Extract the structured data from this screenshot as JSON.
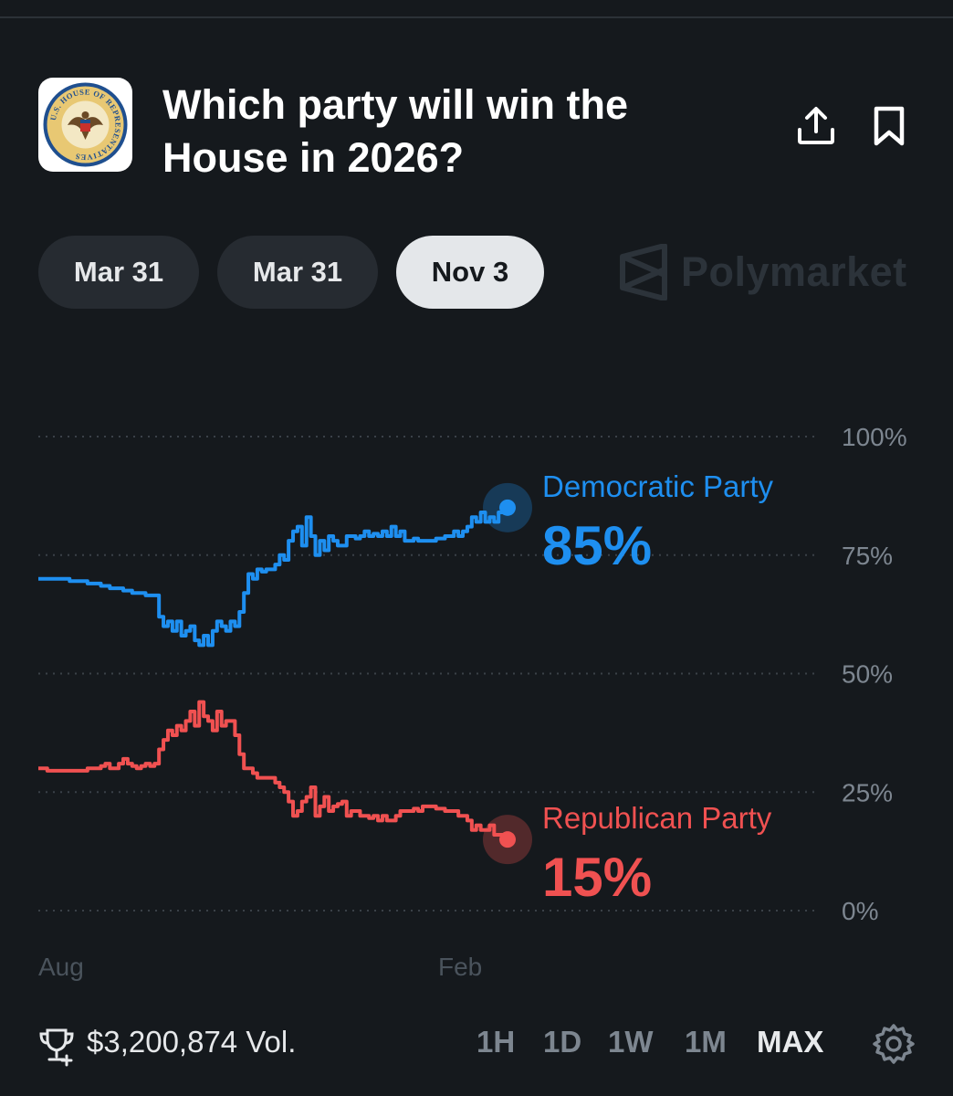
{
  "header": {
    "title": "Which party will win the House in 2026?",
    "logo_text": "U.S. HOUSE OF REPRESENTATIVES"
  },
  "date_tabs": [
    {
      "label": "Mar 31",
      "active": false
    },
    {
      "label": "Mar 31",
      "active": false
    },
    {
      "label": "Nov 3",
      "active": true
    }
  ],
  "brand": {
    "name": "Polymarket"
  },
  "chart_data": {
    "type": "line",
    "y_ticks": [
      "100%",
      "75%",
      "50%",
      "25%",
      "0%"
    ],
    "ylim": [
      0,
      100
    ],
    "x_ticks": [
      "Aug",
      "Feb"
    ],
    "grid": true,
    "series": [
      {
        "name": "Democratic Party",
        "current_label": "85%",
        "color": "#1e8ff0",
        "values": [
          70,
          70,
          70,
          70,
          70,
          70,
          70,
          69.5,
          69.5,
          69.5,
          69.5,
          69,
          69,
          69,
          68.5,
          68.5,
          68,
          68,
          68,
          67.5,
          67.5,
          67,
          67,
          67,
          66.5,
          66.5,
          66.5,
          62,
          60,
          61,
          59,
          61,
          58,
          59,
          60,
          57,
          56,
          58,
          56,
          59,
          61,
          60,
          59,
          61,
          60,
          63,
          67,
          71,
          70,
          72,
          71.5,
          72,
          72,
          73,
          75,
          74,
          78,
          80,
          81,
          77,
          83,
          79,
          75,
          78,
          76,
          79,
          78,
          77,
          77,
          79,
          79,
          78.5,
          79,
          80,
          79,
          79.5,
          79,
          80,
          79,
          81,
          79,
          80,
          78,
          78,
          78.5,
          78,
          78,
          78,
          78,
          78.5,
          78.5,
          79,
          79,
          80,
          79,
          80,
          81,
          83,
          82,
          84,
          82,
          83,
          82,
          84,
          84,
          85
        ]
      },
      {
        "name": "Republican Party",
        "current_label": "15%",
        "color": "#f05151",
        "values": [
          30,
          30,
          29.5,
          29.5,
          29.5,
          29.5,
          29.5,
          29.5,
          29.5,
          29.5,
          29.5,
          30,
          30,
          30,
          30.5,
          31,
          30,
          30,
          31,
          32,
          31,
          30.5,
          30,
          30.5,
          31,
          30.5,
          31,
          34,
          36,
          38,
          37,
          39,
          38,
          40,
          42,
          39,
          44,
          41,
          40,
          38,
          42,
          39,
          40,
          40,
          37,
          33,
          30,
          30,
          29,
          28,
          28,
          28,
          28,
          27,
          26,
          25,
          23,
          20,
          21,
          23,
          24,
          26,
          20,
          22,
          24,
          21,
          22,
          22.5,
          23,
          20,
          21,
          21,
          20,
          20,
          19.5,
          20,
          19,
          20,
          19,
          19,
          20,
          21,
          21,
          21,
          21.5,
          21,
          22,
          22,
          22,
          21.5,
          21.5,
          21,
          21,
          21,
          20,
          20,
          19,
          17,
          18,
          17,
          17,
          18,
          16,
          16,
          15,
          15
        ]
      }
    ]
  },
  "footer": {
    "volume": "$3,200,874 Vol.",
    "ranges": [
      {
        "label": "1H",
        "active": false
      },
      {
        "label": "1D",
        "active": false
      },
      {
        "label": "1W",
        "active": false
      },
      {
        "label": "1M",
        "active": false
      },
      {
        "label": "MAX",
        "active": true
      }
    ]
  }
}
